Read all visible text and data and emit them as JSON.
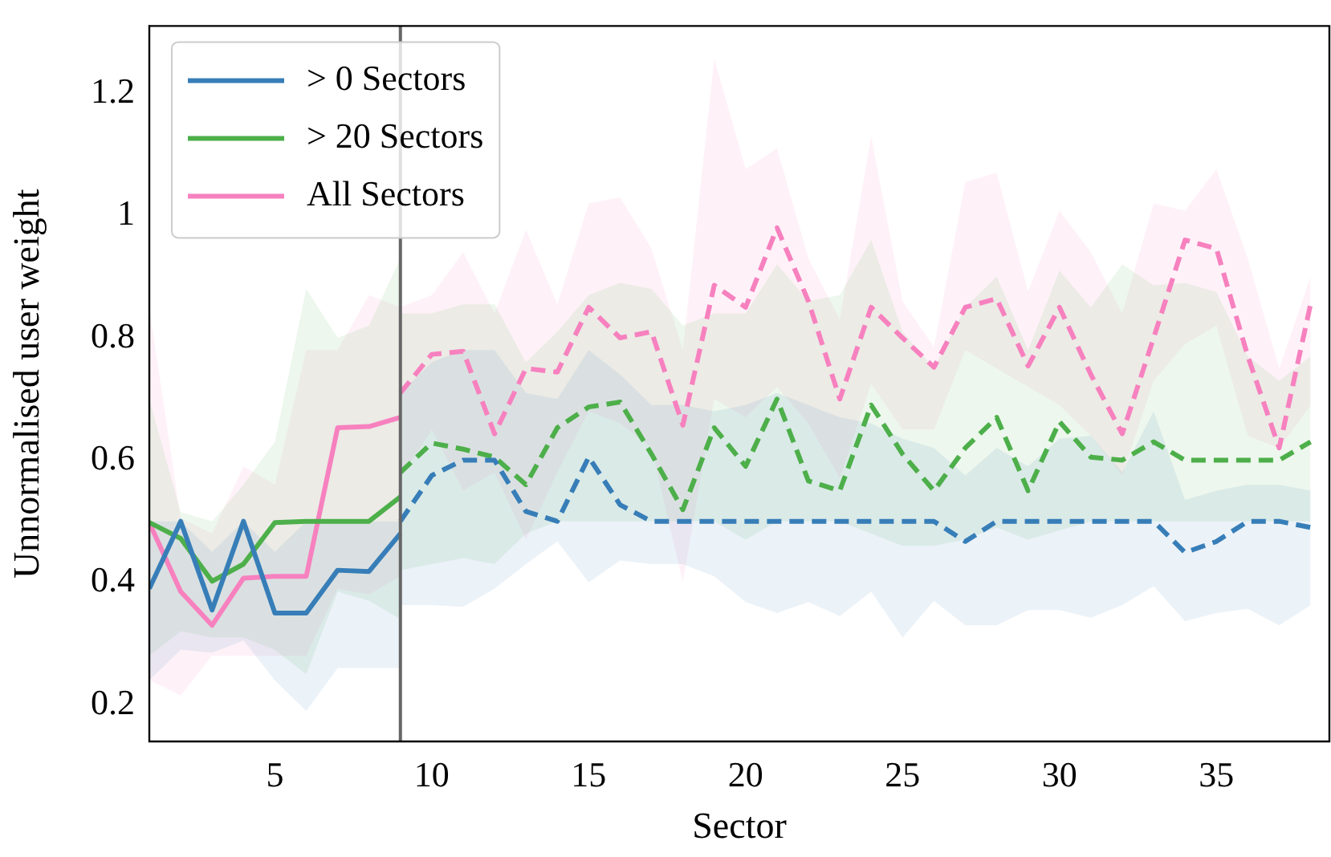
{
  "chart_data": {
    "type": "line",
    "xlabel": "Sector",
    "ylabel": "Unnormalised user weight",
    "xlim": [
      1,
      38.6
    ],
    "ylim": [
      0.14,
      1.31
    ],
    "xticks": [
      5,
      10,
      15,
      20,
      25,
      30,
      35
    ],
    "yticks": [
      0.2,
      0.4,
      0.6,
      0.8,
      1.0,
      1.2
    ],
    "grid": false,
    "legend": "top left",
    "marker": "none",
    "ref_lines": [
      {
        "axis": "x",
        "value": 9,
        "color": "#666666"
      }
    ],
    "series": [
      {
        "name": "> 0 Sectors",
        "color": "#377eb8",
        "line_style": "solid",
        "x": [
          1,
          2,
          3,
          4,
          5,
          6,
          7,
          8,
          9
        ],
        "values": [
          0.39,
          0.5,
          0.355,
          0.5,
          0.35,
          0.35,
          0.42,
          0.418,
          0.48
        ],
        "lower": [
          0.24,
          0.29,
          0.285,
          0.305,
          0.24,
          0.19,
          0.26,
          0.26,
          0.26
        ],
        "upper": [
          0.5,
          0.5,
          0.45,
          0.5,
          0.45,
          0.5,
          0.5,
          0.5,
          0.5
        ]
      },
      {
        "name": "> 20 Sectors",
        "color": "#4daf4a",
        "line_style": "solid",
        "x": [
          1,
          2,
          3,
          4,
          5,
          6,
          7,
          8,
          9
        ],
        "values": [
          0.498,
          0.472,
          0.402,
          0.43,
          0.498,
          0.5,
          0.5,
          0.5,
          0.54
        ],
        "lower": [
          0.28,
          0.32,
          0.31,
          0.31,
          0.29,
          0.25,
          0.385,
          0.37,
          0.34
        ],
        "upper": [
          0.7,
          0.515,
          0.5,
          0.56,
          0.63,
          0.88,
          0.8,
          0.82,
          0.93
        ]
      },
      {
        "name": "All Sectors",
        "color": "#f781bf",
        "line_style": "solid",
        "x": [
          1,
          2,
          3,
          4,
          5,
          6,
          7,
          8,
          9
        ],
        "values": [
          0.498,
          0.385,
          0.33,
          0.407,
          0.41,
          0.41,
          0.653,
          0.655,
          0.67
        ],
        "lower": [
          0.24,
          0.215,
          0.28,
          0.28,
          0.28,
          0.28,
          0.39,
          0.38,
          0.41
        ],
        "upper": [
          0.85,
          0.505,
          0.48,
          0.59,
          0.56,
          0.78,
          0.78,
          0.87,
          0.85
        ]
      },
      {
        "color": "#377eb8",
        "line_style": "dashed",
        "x": [
          9,
          10,
          11,
          12,
          13,
          14,
          15,
          16,
          17,
          18,
          19,
          20,
          21,
          22,
          23,
          24,
          25,
          26,
          27,
          28,
          29,
          30,
          31,
          32,
          33,
          34,
          35,
          36,
          37,
          38
        ],
        "values": [
          0.5,
          0.575,
          0.6,
          0.6,
          0.516,
          0.5,
          0.605,
          0.527,
          0.5,
          0.5,
          0.5,
          0.5,
          0.5,
          0.5,
          0.5,
          0.5,
          0.5,
          0.5,
          0.467,
          0.5,
          0.5,
          0.5,
          0.5,
          0.5,
          0.5,
          0.449,
          0.467,
          0.5,
          0.5,
          0.49
        ],
        "lower": [
          0.363,
          0.363,
          0.36,
          0.39,
          0.43,
          0.467,
          0.4,
          0.436,
          0.43,
          0.43,
          0.41,
          0.368,
          0.35,
          0.368,
          0.345,
          0.385,
          0.31,
          0.37,
          0.33,
          0.33,
          0.355,
          0.355,
          0.342,
          0.363,
          0.394,
          0.337,
          0.35,
          0.357,
          0.33,
          0.363
        ],
        "upper": [
          0.71,
          0.76,
          0.78,
          0.78,
          0.71,
          0.7,
          0.78,
          0.74,
          0.69,
          0.69,
          0.68,
          0.69,
          0.71,
          0.69,
          0.67,
          0.66,
          0.635,
          0.62,
          0.575,
          0.62,
          0.59,
          0.635,
          0.64,
          0.58,
          0.68,
          0.535,
          0.55,
          0.56,
          0.56,
          0.55
        ]
      },
      {
        "color": "#4daf4a",
        "line_style": "dashed",
        "x": [
          9,
          10,
          11,
          12,
          13,
          14,
          15,
          16,
          17,
          18,
          19,
          20,
          21,
          22,
          23,
          24,
          25,
          26,
          27,
          28,
          29,
          30,
          31,
          32,
          33,
          34,
          35,
          36,
          37,
          38
        ],
        "values": [
          0.58,
          0.628,
          0.618,
          0.605,
          0.56,
          0.653,
          0.687,
          0.695,
          0.61,
          0.519,
          0.653,
          0.59,
          0.7,
          0.566,
          0.55,
          0.69,
          0.61,
          0.55,
          0.62,
          0.67,
          0.55,
          0.663,
          0.605,
          0.6,
          0.63,
          0.6,
          0.6,
          0.6,
          0.6,
          0.63
        ],
        "lower": [
          0.42,
          0.43,
          0.44,
          0.43,
          0.48,
          0.5,
          0.5,
          0.5,
          0.5,
          0.5,
          0.5,
          0.47,
          0.5,
          0.5,
          0.5,
          0.48,
          0.46,
          0.46,
          0.47,
          0.49,
          0.47,
          0.485,
          0.5,
          0.5,
          0.5,
          0.5,
          0.5,
          0.5,
          0.5,
          0.5
        ],
        "upper": [
          0.84,
          0.84,
          0.855,
          0.855,
          0.76,
          0.81,
          0.87,
          0.89,
          0.88,
          0.82,
          0.84,
          0.84,
          0.92,
          0.86,
          0.87,
          0.96,
          0.81,
          0.75,
          0.85,
          0.9,
          0.78,
          0.91,
          0.85,
          0.92,
          0.886,
          0.89,
          0.875,
          0.77,
          0.73,
          0.77
        ]
      },
      {
        "color": "#f781bf",
        "line_style": "dashed",
        "x": [
          9,
          10,
          11,
          12,
          13,
          14,
          15,
          16,
          17,
          18,
          19,
          20,
          21,
          22,
          23,
          24,
          25,
          26,
          27,
          28,
          29,
          30,
          31,
          32,
          33,
          34,
          35,
          36,
          37,
          38
        ],
        "values": [
          0.71,
          0.773,
          0.778,
          0.643,
          0.75,
          0.744,
          0.85,
          0.8,
          0.81,
          0.657,
          0.886,
          0.85,
          0.98,
          0.86,
          0.7,
          0.85,
          0.8,
          0.752,
          0.85,
          0.864,
          0.754,
          0.85,
          0.74,
          0.643,
          0.8,
          0.96,
          0.946,
          0.77,
          0.62,
          0.855
        ],
        "lower": [
          0.57,
          0.65,
          0.55,
          0.58,
          0.47,
          0.58,
          0.68,
          0.66,
          0.62,
          0.4,
          0.7,
          0.67,
          0.72,
          0.66,
          0.57,
          0.725,
          0.65,
          0.65,
          0.78,
          0.75,
          0.72,
          0.69,
          0.64,
          0.575,
          0.73,
          0.79,
          0.82,
          0.64,
          0.62,
          0.69
        ],
        "upper": [
          0.85,
          0.87,
          0.94,
          0.84,
          0.977,
          0.855,
          1.02,
          1.03,
          0.946,
          0.78,
          1.257,
          1.076,
          1.11,
          0.93,
          0.83,
          1.13,
          0.86,
          0.785,
          1.055,
          1.07,
          0.876,
          1.008,
          0.94,
          0.84,
          1.02,
          1.008,
          1.076,
          0.93,
          0.75,
          0.9
        ]
      }
    ]
  }
}
